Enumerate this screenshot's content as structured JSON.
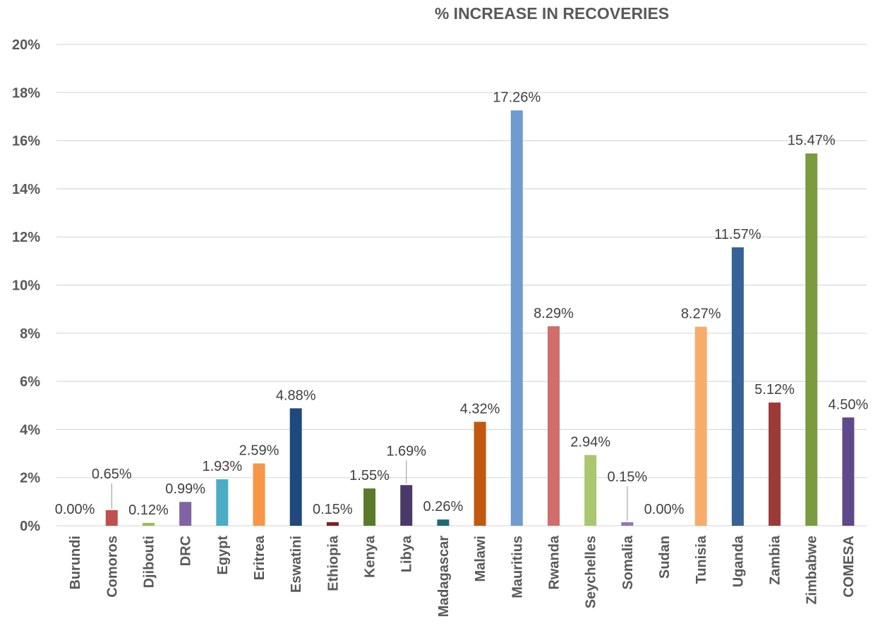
{
  "chart_data": {
    "type": "bar",
    "title": "% INCREASE IN  RECOVERIES",
    "categories": [
      "Burundi",
      "Comoros",
      "Djibouti",
      "DRC",
      "Egypt",
      "Eritrea",
      "Eswatini",
      "Ethiopia",
      "Kenya",
      "Libya",
      "Madagascar",
      "Malawi",
      "Mauritius",
      "Rwanda",
      "Seychelles",
      "Somalia",
      "Sudan",
      "Tunisia",
      "Uganda",
      "Zambia",
      "Zimbabwe",
      "COMESA"
    ],
    "values": [
      0.0,
      0.65,
      0.12,
      0.99,
      1.93,
      2.59,
      4.88,
      0.15,
      1.55,
      1.69,
      0.26,
      4.32,
      17.26,
      8.29,
      2.94,
      0.15,
      0.0,
      8.27,
      11.57,
      5.12,
      15.47,
      4.5
    ],
    "data_labels": [
      "0.00%",
      "0.65%",
      "0.12%",
      "0.99%",
      "1.93%",
      "2.59%",
      "4.88%",
      "0.15%",
      "1.55%",
      "1.69%",
      "0.26%",
      "4.32%",
      "17.26%",
      "8.29%",
      "2.94%",
      "0.15%",
      "0.00%",
      "8.27%",
      "11.57%",
      "5.12%",
      "15.47%",
      "4.50%"
    ],
    "colors": [
      "#4472c4",
      "#c0504d",
      "#9bbb59",
      "#8064a2",
      "#4bacc6",
      "#f79646",
      "#1f497d",
      "#7f1f1f",
      "#5a7a2b",
      "#4a3a6a",
      "#1e6a74",
      "#c0580f",
      "#6f9bd1",
      "#d16d6a",
      "#a9c86e",
      "#9278b5",
      "#4bacc6",
      "#f7ac6a",
      "#366199",
      "#9c3a38",
      "#7a9b3e",
      "#5e4a8a"
    ],
    "ylim": [
      0,
      20
    ],
    "yticks": [
      0,
      2,
      4,
      6,
      8,
      10,
      12,
      14,
      16,
      18,
      20
    ],
    "ytick_labels": [
      "0%",
      "2%",
      "4%",
      "6%",
      "8%",
      "10%",
      "12%",
      "14%",
      "16%",
      "18%",
      "20%"
    ],
    "grid": true,
    "xlabel": "",
    "ylabel": ""
  }
}
